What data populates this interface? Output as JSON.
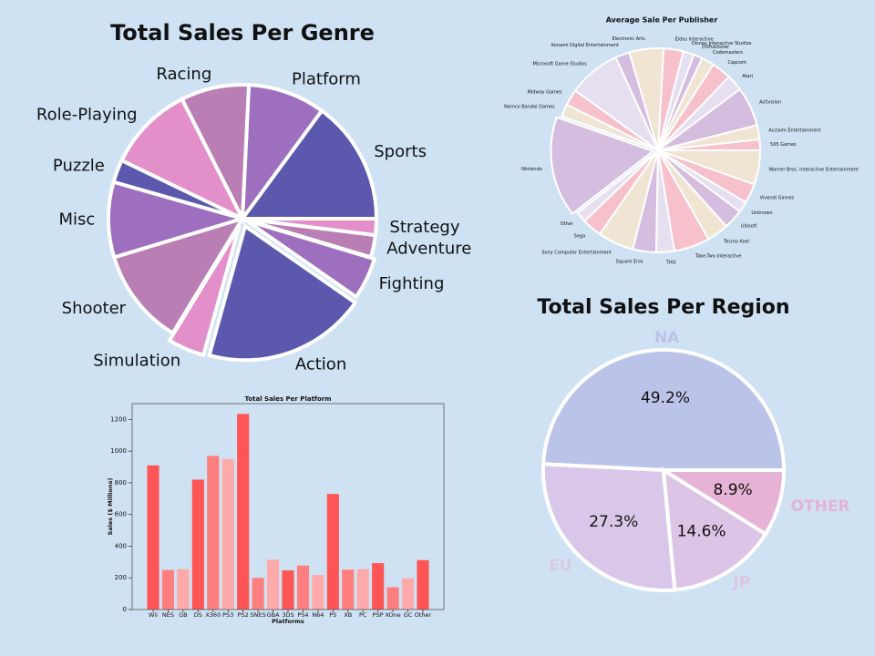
{
  "chart_data": [
    {
      "type": "pie",
      "title": "Total Sales Per Genre",
      "categories": [
        "Sports",
        "Platform",
        "Racing",
        "Role-Playing",
        "Puzzle",
        "Misc",
        "Shooter",
        "Simulation",
        "Action",
        "Fighting",
        "Adventure",
        "Strategy"
      ],
      "values": [
        1330,
        831,
        732,
        927,
        244,
        809,
        1037,
        392,
        1751,
        448,
        239,
        175
      ],
      "colors": [
        "#5c58ad",
        "#9e6fbf",
        "#b97fb5",
        "#e28fca",
        "#5c58ad",
        "#9e6fbf",
        "#b97fb5",
        "#e28fca",
        "#5c58ad",
        "#9e6fbf",
        "#b97fb5",
        "#e28fca"
      ],
      "explode": [
        0,
        0,
        0,
        0,
        0,
        0,
        0,
        0.06,
        0.06,
        0.03,
        0,
        0
      ]
    },
    {
      "type": "pie",
      "title": "Average Sale Per Publisher",
      "categories": [
        "505 Games",
        "Acclaim Entertainment",
        "Activision",
        "Atari",
        "Capcom",
        "Codemasters",
        "D3Publisher",
        "Disney Interactive Studios",
        "Eidos Interactive",
        "Electronic Arts",
        "Konami Digital Entertainment",
        "Microsoft Game Studios",
        "Midway Games",
        "Namco Bandai Games",
        "Nintendo",
        "Other",
        "Sega",
        "Sony Computer Entertainment",
        "Square Enix",
        "THQ",
        "Take-Two Interactive",
        "Tecmo Koei",
        "Ubisoft",
        "Unknown",
        "Vivendi Games",
        "Warner Bros. Interactive Entertainment"
      ],
      "values": [
        0.3,
        0.4,
        1.1,
        0.45,
        0.55,
        0.35,
        0.25,
        0.3,
        0.55,
        0.95,
        0.4,
        1.45,
        0.45,
        0.35,
        2.8,
        0.3,
        0.55,
        1.0,
        0.65,
        0.5,
        1.0,
        0.6,
        0.55,
        0.3,
        0.55,
        0.95
      ],
      "colors": [
        "#f7c1cb",
        "#f0e4d2",
        "#d5bde0",
        "#e6dff0",
        "#f7c1cb",
        "#f0e4d2",
        "#d5bde0",
        "#e6dff0",
        "#f7c1cb",
        "#f0e4d2",
        "#d5bde0",
        "#e6dff0",
        "#f7c1cb",
        "#f0e4d2",
        "#d5bde0",
        "#e6dff0",
        "#f7c1cb",
        "#f0e4d2",
        "#d5bde0",
        "#e6dff0",
        "#f7c1cb",
        "#f0e4d2",
        "#d5bde0",
        "#e6dff0",
        "#f7c1cb",
        "#f0e4d2"
      ],
      "explode": [
        0,
        0,
        0,
        0,
        0,
        0,
        0,
        0,
        0,
        0,
        0,
        0,
        0,
        0,
        0.05,
        0,
        0,
        0,
        0,
        0,
        0,
        0,
        0,
        0,
        0,
        0
      ]
    },
    {
      "type": "bar",
      "title": "Total Sales Per Platform",
      "xlabel": "Platforms",
      "ylabel": "Sales ($ Millions)",
      "categories": [
        "Wii",
        "NES",
        "GB",
        "DS",
        "X360",
        "PS3",
        "PS2",
        "SNES",
        "GBA",
        "3DS",
        "PS4",
        "N64",
        "PS",
        "XB",
        "PC",
        "PSP",
        "XOne",
        "GC",
        "Other"
      ],
      "values": [
        910,
        250,
        255,
        820,
        970,
        950,
        1235,
        200,
        315,
        247,
        278,
        218,
        730,
        252,
        256,
        293,
        141,
        197,
        312
      ],
      "colors": [
        "#ff5555",
        "#ff7f7f",
        "#ffaaaa",
        "#ff5555",
        "#ff7f7f",
        "#ffaaaa",
        "#ff5555",
        "#ff7f7f",
        "#ffaaaa",
        "#ff5555",
        "#ff7f7f",
        "#ffaaaa",
        "#ff5555",
        "#ff7f7f",
        "#ffaaaa",
        "#ff5555",
        "#ff7f7f",
        "#ffaaaa",
        "#ff5555"
      ],
      "ylim": [
        0,
        1300
      ],
      "yticks": [
        0,
        200,
        400,
        600,
        800,
        1000,
        1200
      ]
    },
    {
      "type": "pie",
      "title": "Total Sales Per Region",
      "categories": [
        "NA",
        "EU",
        "JP",
        "OTHER"
      ],
      "values": [
        49.2,
        27.3,
        14.6,
        8.9
      ],
      "value_labels": [
        "49.2%",
        "27.3%",
        "14.6%",
        "8.9%"
      ],
      "colors": [
        "#bcc3e8",
        "#d9c7ea",
        "#dcc4e6",
        "#e6b2d6"
      ]
    }
  ]
}
